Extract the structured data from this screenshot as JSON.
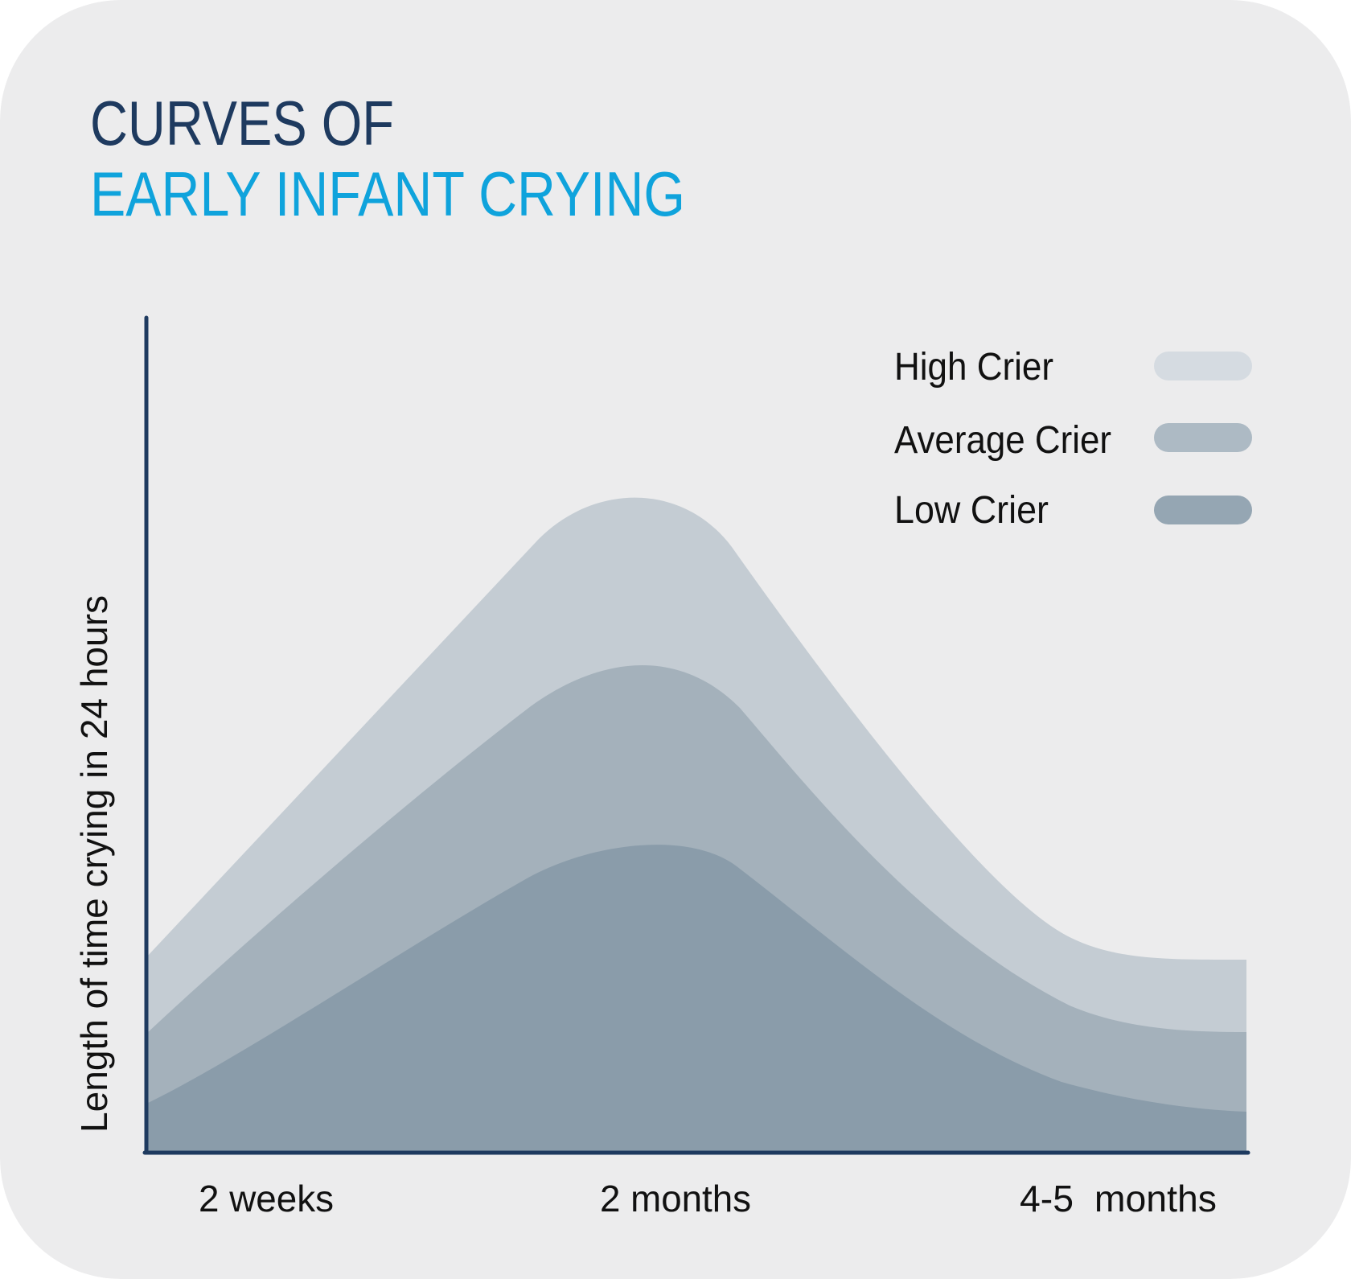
{
  "colors": {
    "background": "#ececed",
    "title_line1": "#1e3a5f",
    "title_line2": "#0fa3dc",
    "axis": "#1e3a5f",
    "high_crier": "#c4ccd3",
    "average_crier": "#a4b1bb",
    "low_crier": "#8a9caa",
    "legend_high": "#d5dbe1",
    "legend_average": "#adbac4",
    "legend_low": "#95a6b3",
    "text": "#111111"
  },
  "chart_data": {
    "type": "area",
    "title": "CURVES OF",
    "subtitle": "EARLY INFANT CRYING",
    "ylabel": "Length of time crying in 24 hours",
    "xlabel": "",
    "x_tick_labels": [
      "2 weeks",
      "2 months",
      "4-5  months"
    ],
    "y_ticks_shown": false,
    "legend": {
      "placement": "top-right",
      "entries": [
        "High Crier",
        "Average Crier",
        "Low Crier"
      ]
    },
    "series": [
      {
        "name": "High Crier",
        "color_key": "high_crier",
        "peak": 0.78
      },
      {
        "name": "Average Crier",
        "color_key": "average_crier",
        "peak": 0.58
      },
      {
        "name": "Low Crier",
        "color_key": "low_crier",
        "peak": 0.37
      }
    ]
  }
}
